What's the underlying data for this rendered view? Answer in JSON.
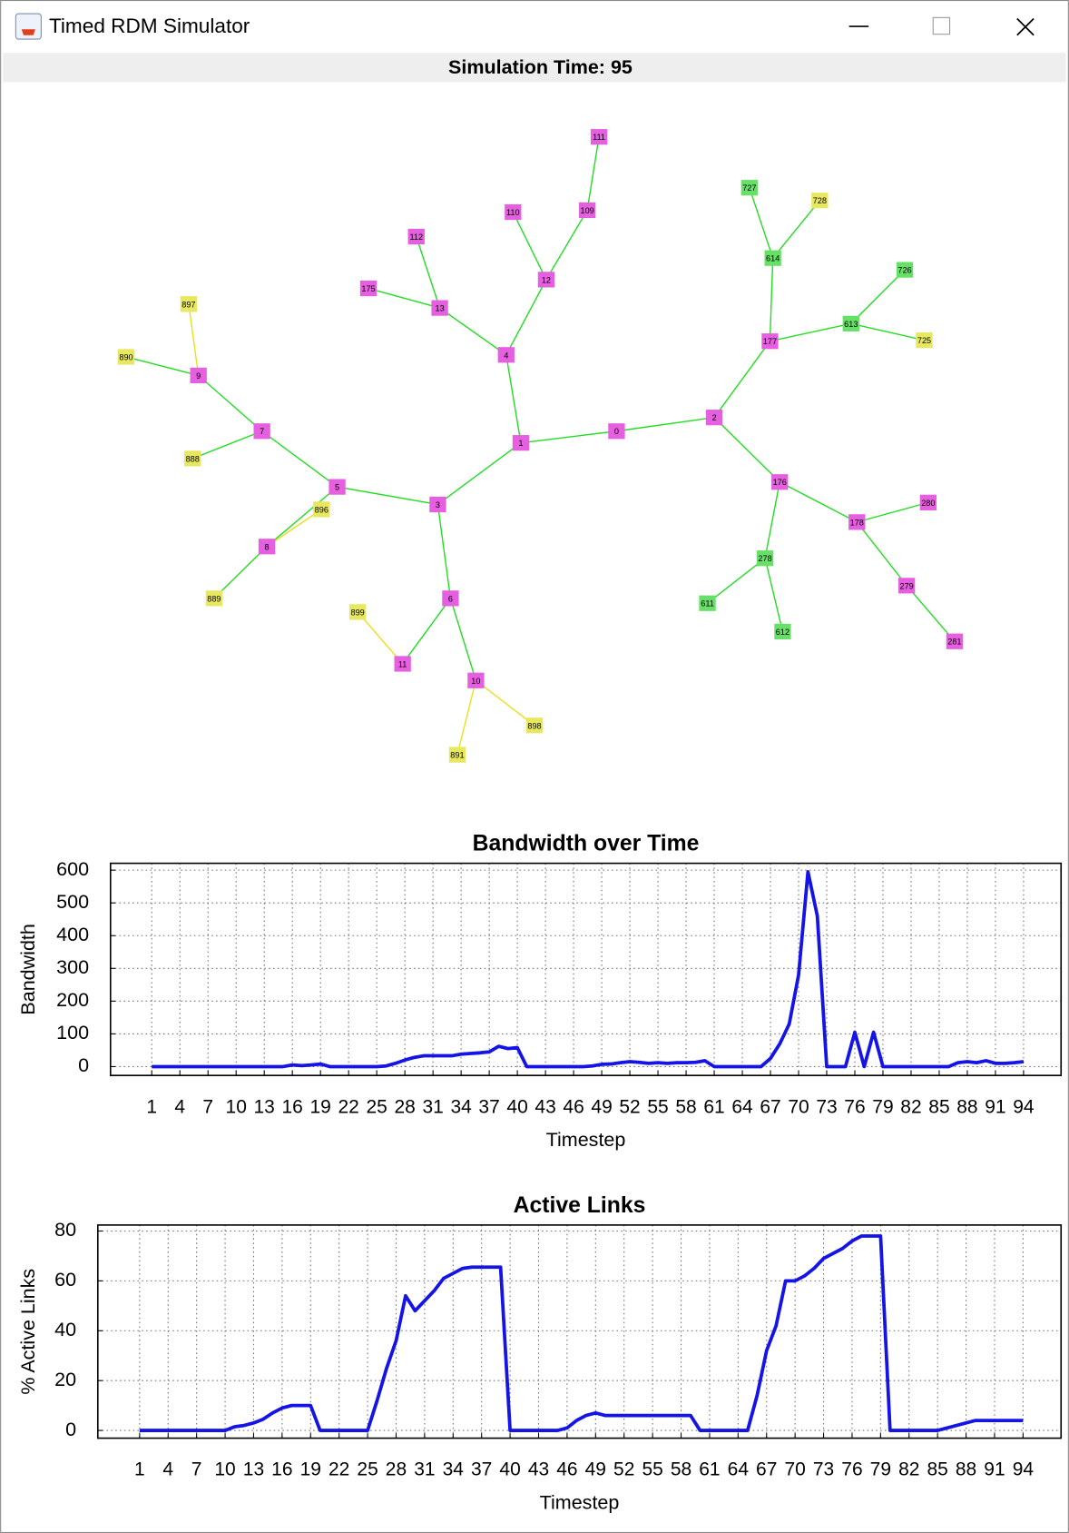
{
  "window": {
    "title": "Timed RDM Simulator"
  },
  "header": "Simulation Time: 95",
  "graph": {
    "nodes": [
      {
        "label": "111",
        "color": "#e65fe0"
      },
      {
        "label": "110",
        "color": "#e65fe0"
      },
      {
        "label": "109",
        "color": "#e65fe0"
      },
      {
        "label": "112",
        "color": "#e65fe0"
      },
      {
        "label": "12",
        "color": "#e65fe0"
      },
      {
        "label": "175",
        "color": "#e65fe0"
      },
      {
        "label": "13",
        "color": "#e65fe0"
      },
      {
        "label": "4",
        "color": "#e65fe0"
      },
      {
        "label": "897",
        "color": "#e8e860"
      },
      {
        "label": "890",
        "color": "#e8e860"
      },
      {
        "label": "9",
        "color": "#e65fe0"
      },
      {
        "label": "7",
        "color": "#e65fe0"
      },
      {
        "label": "888",
        "color": "#e8e860"
      },
      {
        "label": "5",
        "color": "#e65fe0"
      },
      {
        "label": "896",
        "color": "#e8e860"
      },
      {
        "label": "3",
        "color": "#e65fe0"
      },
      {
        "label": "1",
        "color": "#e65fe0"
      },
      {
        "label": "0",
        "color": "#e65fe0"
      },
      {
        "label": "2",
        "color": "#e65fe0"
      },
      {
        "label": "8",
        "color": "#e65fe0"
      },
      {
        "label": "889",
        "color": "#e8e860"
      },
      {
        "label": "899",
        "color": "#e8e860"
      },
      {
        "label": "6",
        "color": "#e65fe0"
      },
      {
        "label": "11",
        "color": "#e65fe0"
      },
      {
        "label": "10",
        "color": "#e65fe0"
      },
      {
        "label": "898",
        "color": "#e8e860"
      },
      {
        "label": "891",
        "color": "#e8e860"
      },
      {
        "label": "727",
        "color": "#66e066"
      },
      {
        "label": "728",
        "color": "#e8e860"
      },
      {
        "label": "614",
        "color": "#66e066"
      },
      {
        "label": "726",
        "color": "#66e066"
      },
      {
        "label": "613",
        "color": "#66e066"
      },
      {
        "label": "725",
        "color": "#e8e860"
      },
      {
        "label": "177",
        "color": "#e65fe0"
      },
      {
        "label": "176",
        "color": "#e65fe0"
      },
      {
        "label": "280",
        "color": "#e65fe0"
      },
      {
        "label": "178",
        "color": "#e65fe0"
      },
      {
        "label": "278",
        "color": "#66e066"
      },
      {
        "label": "611",
        "color": "#66e066"
      },
      {
        "label": "612",
        "color": "#66e066"
      },
      {
        "label": "279",
        "color": "#e65fe0"
      },
      {
        "label": "281",
        "color": "#e65fe0"
      }
    ]
  },
  "chart_data": [
    {
      "type": "line",
      "title": "Bandwidth over Time",
      "x_label": "Timestep",
      "y_label": "Bandwidth",
      "color": "#1414e6",
      "grid": true,
      "x": [
        1,
        2,
        3,
        4,
        5,
        6,
        7,
        8,
        9,
        10,
        11,
        12,
        13,
        14,
        15,
        16,
        17,
        18,
        19,
        20,
        21,
        22,
        23,
        24,
        25,
        26,
        27,
        28,
        29,
        30,
        31,
        32,
        33,
        34,
        35,
        36,
        37,
        38,
        39,
        40,
        41,
        42,
        43,
        44,
        45,
        46,
        47,
        48,
        49,
        50,
        51,
        52,
        53,
        54,
        55,
        56,
        57,
        58,
        59,
        60,
        61,
        62,
        63,
        64,
        65,
        66,
        67,
        68,
        69,
        70,
        71,
        72,
        73,
        74,
        75,
        76,
        77,
        78,
        79,
        80,
        81,
        82,
        83,
        84,
        85,
        86,
        87,
        88,
        89,
        90,
        91,
        92,
        93,
        94
      ],
      "values": [
        0,
        0,
        0,
        0,
        0,
        0,
        0,
        0,
        0,
        0,
        0,
        0,
        0,
        0,
        0,
        5,
        3,
        5,
        8,
        0,
        0,
        0,
        0,
        0,
        0,
        2,
        10,
        20,
        28,
        33,
        33,
        33,
        33,
        38,
        40,
        42,
        45,
        62,
        55,
        58,
        0,
        0,
        0,
        0,
        0,
        0,
        0,
        2,
        7,
        8,
        12,
        15,
        13,
        10,
        12,
        10,
        12,
        12,
        13,
        18,
        0,
        0,
        0,
        0,
        0,
        0,
        25,
        70,
        130,
        280,
        595,
        460,
        0,
        0,
        0,
        105,
        0,
        105,
        0,
        0,
        0,
        0,
        0,
        0,
        0,
        0,
        12,
        15,
        12,
        18,
        10,
        10,
        12,
        15
      ],
      "xlim": [
        -3.4,
        98
      ],
      "xticks": [
        1,
        4,
        7,
        10,
        13,
        16,
        19,
        22,
        25,
        28,
        31,
        34,
        37,
        40,
        43,
        46,
        49,
        52,
        55,
        58,
        61,
        64,
        67,
        70,
        73,
        76,
        79,
        82,
        85,
        88,
        91,
        94
      ],
      "ylim": [
        -27,
        621
      ],
      "yticks": [
        0,
        100,
        200,
        300,
        400,
        500,
        600
      ]
    },
    {
      "type": "line",
      "title": "Active Links",
      "x_label": "Timestep",
      "y_label": "% Active Links",
      "color": "#1414e6",
      "grid": true,
      "x": [
        1,
        2,
        3,
        4,
        5,
        6,
        7,
        8,
        9,
        10,
        11,
        12,
        13,
        14,
        15,
        16,
        17,
        18,
        19,
        20,
        21,
        22,
        23,
        24,
        25,
        26,
        27,
        28,
        29,
        30,
        31,
        32,
        33,
        34,
        35,
        36,
        37,
        38,
        39,
        40,
        41,
        42,
        43,
        44,
        45,
        46,
        47,
        48,
        49,
        50,
        51,
        52,
        53,
        54,
        55,
        56,
        57,
        58,
        59,
        60,
        61,
        62,
        63,
        64,
        65,
        66,
        67,
        68,
        69,
        70,
        71,
        72,
        73,
        74,
        75,
        76,
        77,
        78,
        79,
        80,
        81,
        82,
        83,
        84,
        85,
        86,
        87,
        88,
        89,
        90,
        91,
        92,
        93,
        94
      ],
      "values": [
        0,
        0,
        0,
        0,
        0,
        0,
        0,
        0,
        0,
        0,
        1.5,
        2,
        3,
        4.5,
        7,
        9,
        10,
        10,
        10,
        0,
        0,
        0,
        0,
        0,
        0,
        12,
        25,
        36,
        54,
        48,
        52,
        56,
        61,
        63,
        65,
        65.5,
        65.5,
        65.5,
        65.5,
        0,
        0,
        0,
        0,
        0,
        0,
        1,
        4,
        6,
        7,
        6,
        6,
        6,
        6,
        6,
        6,
        6,
        6,
        6,
        6,
        0,
        0,
        0,
        0,
        0,
        0,
        14,
        32,
        42,
        60,
        60,
        62,
        65,
        69,
        71,
        73,
        76,
        78,
        78,
        78,
        0,
        0,
        0,
        0,
        0,
        0,
        1,
        2,
        3,
        4,
        4,
        4,
        4,
        4,
        4
      ],
      "xlim": [
        -3.4,
        98
      ],
      "xticks": [
        1,
        4,
        7,
        10,
        13,
        16,
        19,
        22,
        25,
        28,
        31,
        34,
        37,
        40,
        43,
        46,
        49,
        52,
        55,
        58,
        61,
        64,
        67,
        70,
        73,
        76,
        79,
        82,
        85,
        88,
        91,
        94
      ],
      "ylim": [
        -3.1,
        82.4
      ],
      "yticks": [
        0,
        20,
        40,
        60,
        80
      ]
    }
  ]
}
